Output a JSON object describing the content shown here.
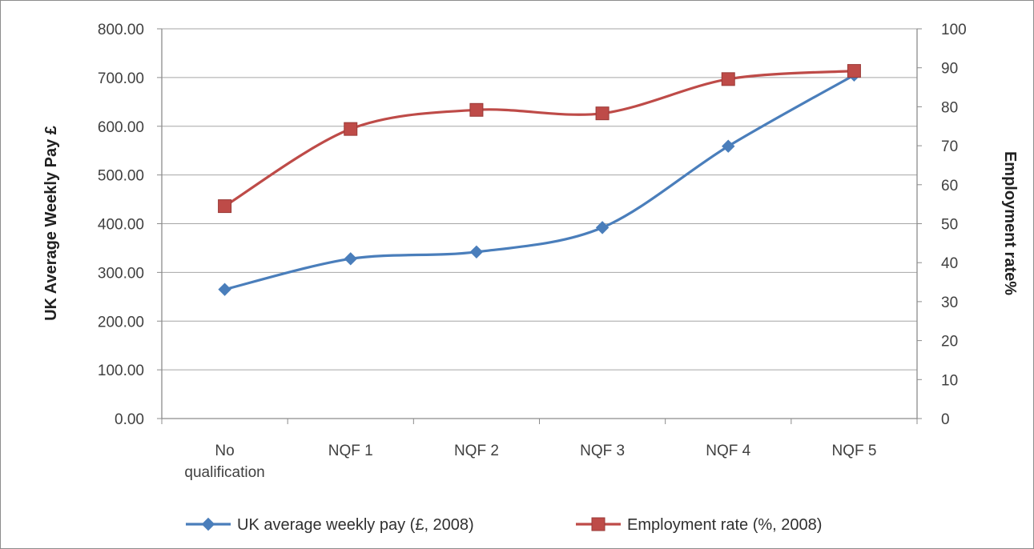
{
  "chart_data": {
    "type": "line",
    "title": "",
    "categories": [
      [
        "No",
        "qualification"
      ],
      [
        "NQF 1"
      ],
      [
        "NQF 2"
      ],
      [
        "NQF 3"
      ],
      [
        "NQF 4"
      ],
      [
        "NQF 5"
      ]
    ],
    "ylabel": "UK Average Weekly Pay £",
    "y2label": "Employment rate%",
    "ylim": [
      0,
      800
    ],
    "y2lim": [
      0,
      100
    ],
    "yticks": [
      "0.00",
      "100.00",
      "200.00",
      "300.00",
      "400.00",
      "500.00",
      "600.00",
      "700.00",
      "800.00"
    ],
    "y2ticks": [
      "0",
      "10",
      "20",
      "30",
      "40",
      "50",
      "60",
      "70",
      "80",
      "90",
      "100"
    ],
    "grid": true,
    "legend_position": "bottom",
    "series": [
      {
        "name": "UK average weekly pay (£, 2008)",
        "axis": "left",
        "marker": "diamond",
        "color": "#4a7ebb",
        "values": [
          265,
          328,
          342,
          392,
          559,
          705
        ]
      },
      {
        "name": "Employment rate (%, 2008)",
        "axis": "right",
        "marker": "square",
        "color": "#be4b48",
        "values": [
          54.5,
          74.3,
          79.2,
          78.3,
          87.1,
          89.2
        ]
      }
    ]
  }
}
